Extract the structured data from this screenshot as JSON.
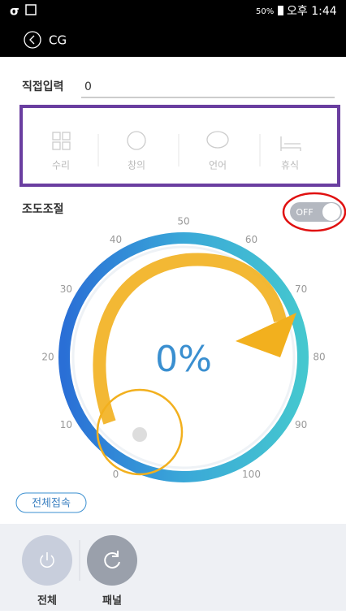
{
  "status_bar": {
    "battery": "50%",
    "time": "오후 1:44"
  },
  "header": {
    "title": "CG"
  },
  "direct_input": {
    "label": "직접입력",
    "value": "0"
  },
  "modes": [
    "수리",
    "창의",
    "언어",
    "휴식"
  ],
  "brightness": {
    "label": "조도조절",
    "toggle": "OFF",
    "dial_labels": [
      0,
      10,
      20,
      30,
      40,
      50,
      60,
      70,
      80,
      90,
      100
    ],
    "display": "0%"
  },
  "connect_all": "전체접속",
  "bottom_buttons": [
    "전체",
    "패널"
  ]
}
